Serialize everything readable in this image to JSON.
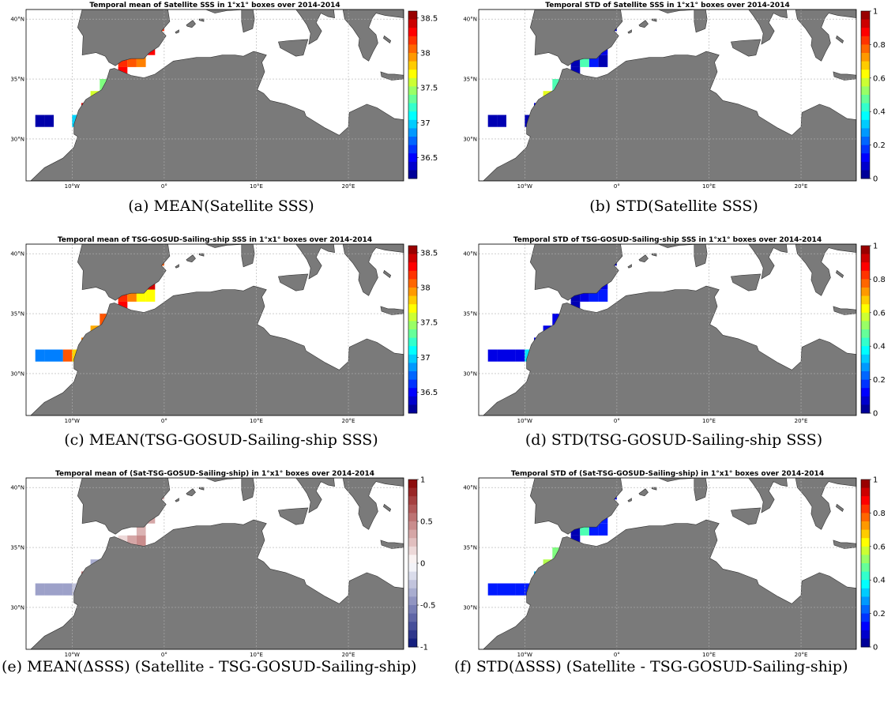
{
  "panels": [
    {
      "id": "a",
      "title": "Temporal mean of Satellite SSS in 1°x1° boxes over 2014-2014",
      "caption": "(a) MEAN(Satellite SSS)",
      "x_ticks": [
        "10°W",
        "0°",
        "10°E",
        "20°E"
      ],
      "y_ticks": [
        "40°N",
        "35°N",
        "30°N"
      ],
      "colorbar": {
        "scale": "jet",
        "ticks": [
          "38.5",
          "38",
          "37.5",
          "37",
          "36.5"
        ],
        "range": [
          36.2,
          38.6
        ],
        "tick_values": [
          38.5,
          38,
          37.5,
          37,
          36.5
        ]
      },
      "cells": [
        {
          "lon": -1,
          "lat": 39,
          "value": 38.2
        },
        {
          "lon": -2,
          "lat": 38,
          "value": 38.5
        },
        {
          "lon": -3,
          "lat": 37,
          "value": 38.3
        },
        {
          "lon": -2,
          "lat": 37,
          "value": 38.3
        },
        {
          "lon": -5,
          "lat": 36,
          "value": 38.2
        },
        {
          "lon": -4,
          "lat": 36,
          "value": 38.1
        },
        {
          "lon": -3,
          "lat": 36,
          "value": 38.0
        },
        {
          "lon": -5,
          "lat": 35,
          "value": 38.3
        },
        {
          "lon": -6,
          "lat": 34,
          "value": 38.1
        },
        {
          "lon": -5,
          "lat": 34,
          "value": 37.9
        },
        {
          "lon": -7,
          "lat": 34,
          "value": 37.4
        },
        {
          "lon": -8,
          "lat": 33,
          "value": 37.6
        },
        {
          "lon": -7,
          "lat": 33,
          "value": 37.5
        },
        {
          "lon": -9,
          "lat": 32,
          "value": 38.4
        },
        {
          "lon": -9,
          "lat": 31,
          "value": 37.5
        },
        {
          "lon": -10,
          "lat": 31,
          "value": 37.0
        },
        {
          "lon": -14,
          "lat": 31,
          "value": 36.3
        },
        {
          "lon": -13,
          "lat": 31,
          "value": 36.3
        }
      ]
    },
    {
      "id": "b",
      "title": "Temporal STD of Satellite SSS in 1°x1° boxes over 2014-2014",
      "caption": "(b) STD(Satellite SSS)",
      "x_ticks": [
        "10°W",
        "0°",
        "10°E",
        "20°E"
      ],
      "y_ticks": [
        "40°N",
        "35°N",
        "30°N"
      ],
      "colorbar": {
        "scale": "jet",
        "ticks": [
          "1",
          "0.8",
          "0.6",
          "0.4",
          "0.2",
          "0"
        ],
        "range": [
          0,
          1
        ],
        "tick_values": [
          1,
          0.8,
          0.6,
          0.4,
          0.2,
          0
        ]
      },
      "cells": [
        {
          "lon": -1,
          "lat": 39,
          "value": 0.05
        },
        {
          "lon": -2,
          "lat": 38,
          "value": 0.35
        },
        {
          "lon": -2,
          "lat": 37,
          "value": 0.1
        },
        {
          "lon": -3,
          "lat": 37,
          "value": 0.15
        },
        {
          "lon": -5,
          "lat": 36,
          "value": 0.05
        },
        {
          "lon": -4,
          "lat": 36,
          "value": 0.45
        },
        {
          "lon": -3,
          "lat": 36,
          "value": 0.15
        },
        {
          "lon": -2,
          "lat": 36,
          "value": 0.05
        },
        {
          "lon": -5,
          "lat": 35,
          "value": 0.05
        },
        {
          "lon": -6,
          "lat": 34,
          "value": 0.05
        },
        {
          "lon": -5,
          "lat": 34,
          "value": 0.05
        },
        {
          "lon": -7,
          "lat": 34,
          "value": 0.45
        },
        {
          "lon": -8,
          "lat": 33,
          "value": 0.6
        },
        {
          "lon": -7,
          "lat": 33,
          "value": 0.05
        },
        {
          "lon": -9,
          "lat": 32,
          "value": 0.1
        },
        {
          "lon": -9,
          "lat": 31,
          "value": 0.45
        },
        {
          "lon": -10,
          "lat": 31,
          "value": 0.05
        },
        {
          "lon": -14,
          "lat": 31,
          "value": 0.05
        },
        {
          "lon": -13,
          "lat": 31,
          "value": 0.05
        }
      ]
    },
    {
      "id": "c",
      "title": "Temporal mean of TSG-GOSUD-Sailing-ship SSS in 1°x1° boxes over 2014-2014",
      "caption": "(c) MEAN(TSG-GOSUD-Sailing-ship SSS)",
      "x_ticks": [
        "10°W",
        "0°",
        "10°E",
        "20°E"
      ],
      "y_ticks": [
        "40°N",
        "35°N",
        "30°N"
      ],
      "colorbar": {
        "scale": "jet",
        "ticks": [
          "38.5",
          "38",
          "37.5",
          "37",
          "36.5"
        ],
        "range": [
          36.2,
          38.6
        ],
        "tick_values": [
          38.5,
          38,
          37.5,
          37,
          36.5
        ]
      },
      "cells": [
        {
          "lon": -1,
          "lat": 39,
          "value": 38.1
        },
        {
          "lon": -2,
          "lat": 38,
          "value": 38.4
        },
        {
          "lon": -2,
          "lat": 37,
          "value": 38.4
        },
        {
          "lon": -3,
          "lat": 37,
          "value": 37.9
        },
        {
          "lon": -5,
          "lat": 36,
          "value": 38.2
        },
        {
          "lon": -4,
          "lat": 36,
          "value": 38.0
        },
        {
          "lon": -3,
          "lat": 36,
          "value": 37.7
        },
        {
          "lon": -2,
          "lat": 36,
          "value": 37.7
        },
        {
          "lon": -5,
          "lat": 35,
          "value": 38.3
        },
        {
          "lon": -6,
          "lat": 34,
          "value": 38.1
        },
        {
          "lon": -5,
          "lat": 34,
          "value": 37.9
        },
        {
          "lon": -7,
          "lat": 34,
          "value": 38.1
        },
        {
          "lon": -8,
          "lat": 33,
          "value": 37.9
        },
        {
          "lon": -7,
          "lat": 33,
          "value": 37.9
        },
        {
          "lon": -9,
          "lat": 32,
          "value": 38.0
        },
        {
          "lon": -9,
          "lat": 31,
          "value": 37.5
        },
        {
          "lon": -10,
          "lat": 31,
          "value": 37.8
        },
        {
          "lon": -11,
          "lat": 31,
          "value": 38.1
        },
        {
          "lon": -12,
          "lat": 31,
          "value": 36.8
        },
        {
          "lon": -13,
          "lat": 31,
          "value": 36.8
        },
        {
          "lon": -14,
          "lat": 31,
          "value": 36.8
        }
      ]
    },
    {
      "id": "d",
      "title": "Temporal STD of TSG-GOSUD-Sailing-ship SSS in 1°x1° boxes over 2014-2014",
      "caption": "(d) STD(TSG-GOSUD-Sailing-ship SSS)",
      "x_ticks": [
        "10°W",
        "0°",
        "10°E",
        "20°E"
      ],
      "y_ticks": [
        "40°N",
        "35°N",
        "30°N"
      ],
      "colorbar": {
        "scale": "jet",
        "ticks": [
          "1",
          "0.8",
          "0.6",
          "0.4",
          "0.2",
          "0"
        ],
        "range": [
          0,
          1
        ],
        "tick_values": [
          1,
          0.8,
          0.6,
          0.4,
          0.2,
          0
        ]
      },
      "cells": [
        {
          "lon": -1,
          "lat": 39,
          "value": 0.05
        },
        {
          "lon": -2,
          "lat": 38,
          "value": 0.1
        },
        {
          "lon": -2,
          "lat": 37,
          "value": 0.1
        },
        {
          "lon": -3,
          "lat": 37,
          "value": 0.35
        },
        {
          "lon": -5,
          "lat": 36,
          "value": 0.05
        },
        {
          "lon": -4,
          "lat": 36,
          "value": 0.1
        },
        {
          "lon": -3,
          "lat": 36,
          "value": 0.15
        },
        {
          "lon": -2,
          "lat": 36,
          "value": 0.15
        },
        {
          "lon": -5,
          "lat": 35,
          "value": 0.05
        },
        {
          "lon": -6,
          "lat": 34,
          "value": 0.05
        },
        {
          "lon": -5,
          "lat": 34,
          "value": 0.05
        },
        {
          "lon": -7,
          "lat": 34,
          "value": 0.1
        },
        {
          "lon": -8,
          "lat": 33,
          "value": 0.1
        },
        {
          "lon": -7,
          "lat": 33,
          "value": 0.05
        },
        {
          "lon": -9,
          "lat": 32,
          "value": 0.1
        },
        {
          "lon": -9,
          "lat": 31,
          "value": 0.15
        },
        {
          "lon": -10,
          "lat": 31,
          "value": 0.35
        },
        {
          "lon": -11,
          "lat": 31,
          "value": 0.1
        },
        {
          "lon": -12,
          "lat": 31,
          "value": 0.1
        },
        {
          "lon": -13,
          "lat": 31,
          "value": 0.1
        },
        {
          "lon": -14,
          "lat": 31,
          "value": 0.1
        }
      ]
    },
    {
      "id": "e",
      "title": "Temporal mean of (Sat-TSG-GOSUD-Sailing-ship) in 1°x1° boxes over 2014-2014",
      "caption": "(e) MEAN(ΔSSS) (Satellite - TSG-GOSUD-Sailing-ship)",
      "x_ticks": [
        "10°W",
        "0°",
        "10°E",
        "20°E"
      ],
      "y_ticks": [
        "40°N",
        "35°N",
        "30°N"
      ],
      "colorbar": {
        "scale": "diverging",
        "ticks": [
          "1",
          "0.5",
          "0",
          "-0.5",
          "-1"
        ],
        "range": [
          -1,
          1
        ],
        "tick_values": [
          1,
          0.5,
          0,
          -0.5,
          -1
        ]
      },
      "cells": [
        {
          "lon": -1,
          "lat": 39,
          "value": 0.3
        },
        {
          "lon": -2,
          "lat": 38,
          "value": 0.4
        },
        {
          "lon": -2,
          "lat": 37,
          "value": 0.35
        },
        {
          "lon": -3,
          "lat": 37,
          "value": 0.3
        },
        {
          "lon": -3,
          "lat": 36,
          "value": 0.3
        },
        {
          "lon": -5,
          "lat": 35,
          "value": 0.15
        },
        {
          "lon": -4,
          "lat": 35,
          "value": 0.35
        },
        {
          "lon": -3,
          "lat": 35,
          "value": 0.45
        },
        {
          "lon": -8,
          "lat": 33,
          "value": -0.35
        },
        {
          "lon": -9,
          "lat": 32,
          "value": 0.55
        },
        {
          "lon": -10,
          "lat": 31,
          "value": -0.25
        },
        {
          "lon": -11,
          "lat": 31,
          "value": -0.4
        },
        {
          "lon": -12,
          "lat": 31,
          "value": -0.4
        },
        {
          "lon": -13,
          "lat": 31,
          "value": -0.4
        },
        {
          "lon": -14,
          "lat": 31,
          "value": -0.4
        }
      ]
    },
    {
      "id": "f",
      "title": "Temporal STD of (Sat-TSG-GOSUD-Sailing-ship) in 1°x1° boxes over 2014-2014",
      "caption": "(f) STD(ΔSSS) (Satellite - TSG-GOSUD-Sailing-ship)",
      "x_ticks": [
        "10°W",
        "0°",
        "10°E",
        "20°E"
      ],
      "y_ticks": [
        "40°N",
        "35°N",
        "30°N"
      ],
      "colorbar": {
        "scale": "jet",
        "ticks": [
          "1",
          "0.8",
          "0.6",
          "0.4",
          "0.2",
          "0"
        ],
        "range": [
          0,
          1
        ],
        "tick_values": [
          1,
          0.8,
          0.6,
          0.4,
          0.2,
          0
        ]
      },
      "cells": [
        {
          "lon": -1,
          "lat": 39,
          "value": 0.1
        },
        {
          "lon": -2,
          "lat": 38,
          "value": 0.35
        },
        {
          "lon": -2,
          "lat": 37,
          "value": 0.15
        },
        {
          "lon": -3,
          "lat": 37,
          "value": 0.15
        },
        {
          "lon": -5,
          "lat": 36,
          "value": 0.05
        },
        {
          "lon": -4,
          "lat": 36,
          "value": 0.45
        },
        {
          "lon": -3,
          "lat": 36,
          "value": 0.15
        },
        {
          "lon": -2,
          "lat": 36,
          "value": 0.15
        },
        {
          "lon": -5,
          "lat": 35,
          "value": 0.05
        },
        {
          "lon": -6,
          "lat": 34,
          "value": 0.05
        },
        {
          "lon": -5,
          "lat": 34,
          "value": 0.05
        },
        {
          "lon": -7,
          "lat": 34,
          "value": 0.5
        },
        {
          "lon": -8,
          "lat": 33,
          "value": 0.55
        },
        {
          "lon": -7,
          "lat": 33,
          "value": 0.05
        },
        {
          "lon": -9,
          "lat": 32,
          "value": 0.3
        },
        {
          "lon": -9,
          "lat": 31,
          "value": 0.55
        },
        {
          "lon": -10,
          "lat": 31,
          "value": 0.15
        },
        {
          "lon": -11,
          "lat": 31,
          "value": 0.15
        },
        {
          "lon": -12,
          "lat": 31,
          "value": 0.15
        },
        {
          "lon": -13,
          "lat": 31,
          "value": 0.15
        },
        {
          "lon": -14,
          "lat": 31,
          "value": 0.15
        }
      ]
    }
  ],
  "colors": {
    "land": "#7a7a7a",
    "sea": "#ffffff",
    "grid": "#b0b0b0"
  }
}
